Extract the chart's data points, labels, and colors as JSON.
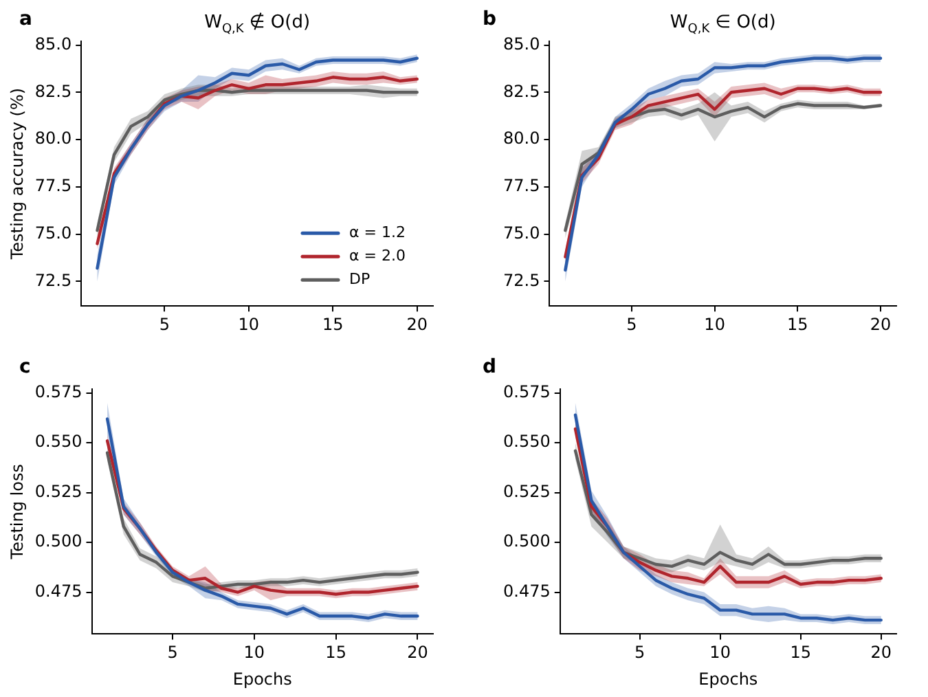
{
  "chart_data": [
    {
      "type": "line",
      "title": "W$_{Q,K}$ ∉ O(d)",
      "ylabel": "Testing accuracy (%)",
      "annotations": [
        "a"
      ],
      "legend": "bottom right",
      "x": [
        1,
        2,
        3,
        4,
        5,
        6,
        7,
        8,
        9,
        10,
        11,
        12,
        13,
        14,
        15,
        16,
        17,
        18,
        19,
        20
      ],
      "xlim": [
        0.05,
        20.95
      ],
      "xticks": [
        5,
        10,
        15,
        20
      ],
      "ylim": [
        71.2,
        85.2
      ],
      "yticks": [
        {
          "value": 72.5,
          "label": "72.5"
        },
        {
          "value": 75,
          "label": "75.0"
        },
        {
          "value": 77.5,
          "label": "77.5"
        },
        {
          "value": 80,
          "label": "80.0"
        },
        {
          "value": 82.5,
          "label": "82.5"
        },
        {
          "value": 85,
          "label": "85.0"
        }
      ],
      "series": [
        {
          "name": "α = 1.2",
          "color": "#2a5aa8",
          "values": [
            73.2,
            78.0,
            79.5,
            80.8,
            81.8,
            82.3,
            82.6,
            83.0,
            83.5,
            83.4,
            83.9,
            84.0,
            83.7,
            84.1,
            84.2,
            84.2,
            84.2,
            84.2,
            84.1,
            84.3
          ],
          "lower": [
            72.5,
            77.6,
            79.2,
            80.5,
            81.5,
            82.0,
            82.0,
            82.7,
            83.2,
            83.1,
            83.6,
            83.7,
            83.5,
            83.9,
            84.0,
            84.0,
            84.0,
            84.0,
            83.9,
            84.1
          ],
          "upper": [
            73.9,
            78.4,
            79.8,
            81.1,
            82.1,
            82.6,
            83.4,
            83.3,
            83.8,
            83.7,
            84.2,
            84.3,
            83.9,
            84.3,
            84.4,
            84.4,
            84.4,
            84.4,
            84.3,
            84.5
          ]
        },
        {
          "name": "α = 2.0",
          "color": "#b0252d",
          "values": [
            74.5,
            78.2,
            79.5,
            80.8,
            81.9,
            82.3,
            82.2,
            82.6,
            82.9,
            82.7,
            82.9,
            82.9,
            83.0,
            83.1,
            83.3,
            83.2,
            83.2,
            83.3,
            83.1,
            83.2
          ],
          "lower": [
            74.2,
            77.9,
            79.2,
            80.5,
            81.6,
            82.0,
            81.6,
            82.3,
            82.6,
            82.4,
            82.4,
            82.6,
            82.7,
            82.8,
            83.0,
            82.9,
            82.9,
            83.0,
            82.9,
            83.0
          ],
          "upper": [
            74.8,
            78.5,
            79.8,
            81.1,
            82.2,
            82.6,
            82.8,
            82.9,
            83.2,
            83.0,
            83.4,
            83.2,
            83.3,
            83.4,
            83.6,
            83.5,
            83.5,
            83.6,
            83.3,
            83.4
          ]
        },
        {
          "name": "DP",
          "color": "#5e5e5e",
          "values": [
            75.2,
            79.2,
            80.7,
            81.2,
            82.1,
            82.4,
            82.6,
            82.6,
            82.5,
            82.6,
            82.6,
            82.6,
            82.6,
            82.6,
            82.6,
            82.6,
            82.6,
            82.5,
            82.5,
            82.5
          ],
          "lower": [
            74.8,
            78.8,
            80.3,
            80.9,
            81.8,
            82.1,
            82.3,
            82.3,
            82.3,
            82.4,
            82.4,
            82.4,
            82.4,
            82.4,
            82.4,
            82.4,
            82.3,
            82.2,
            82.3,
            82.3
          ],
          "upper": [
            75.6,
            79.6,
            81.1,
            81.5,
            82.4,
            82.7,
            82.9,
            82.9,
            82.7,
            82.8,
            82.8,
            82.8,
            82.8,
            82.8,
            82.8,
            82.8,
            82.9,
            82.8,
            82.7,
            82.7
          ]
        }
      ]
    },
    {
      "type": "line",
      "title": "W$_{Q,K}$ ∈ O(d)",
      "annotations": [
        "b"
      ],
      "x": [
        1,
        2,
        3,
        4,
        5,
        6,
        7,
        8,
        9,
        10,
        11,
        12,
        13,
        14,
        15,
        16,
        17,
        18,
        19,
        20
      ],
      "xlim": [
        0.05,
        20.95
      ],
      "xticks": [
        5,
        10,
        15,
        20
      ],
      "ylim": [
        71.2,
        85.2
      ],
      "yticks": [
        {
          "value": 72.5,
          "label": "72.5"
        },
        {
          "value": 75,
          "label": "75.0"
        },
        {
          "value": 77.5,
          "label": "77.5"
        },
        {
          "value": 80,
          "label": "80.0"
        },
        {
          "value": 82.5,
          "label": "82.5"
        },
        {
          "value": 85,
          "label": "85.0"
        }
      ],
      "series": [
        {
          "color": "#2a5aa8",
          "values": [
            73.1,
            78.0,
            79.2,
            80.9,
            81.6,
            82.4,
            82.7,
            83.1,
            83.2,
            83.8,
            83.8,
            83.9,
            83.9,
            84.1,
            84.2,
            84.3,
            84.3,
            84.2,
            84.3,
            84.3
          ],
          "lower": [
            72.5,
            77.5,
            78.9,
            80.6,
            81.3,
            82.1,
            82.3,
            82.8,
            82.9,
            83.5,
            83.6,
            83.7,
            83.7,
            83.9,
            84.0,
            84.1,
            84.1,
            84.0,
            84.1,
            84.1
          ],
          "upper": [
            73.7,
            78.5,
            79.5,
            81.2,
            81.9,
            82.7,
            83.1,
            83.4,
            83.5,
            84.1,
            84.0,
            84.1,
            84.1,
            84.3,
            84.4,
            84.5,
            84.5,
            84.4,
            84.5,
            84.5
          ]
        },
        {
          "color": "#b0252d",
          "values": [
            73.8,
            78.1,
            79.0,
            80.8,
            81.2,
            81.8,
            82.0,
            82.2,
            82.4,
            81.6,
            82.5,
            82.6,
            82.7,
            82.4,
            82.7,
            82.7,
            82.6,
            82.7,
            82.5,
            82.5
          ],
          "lower": [
            73.4,
            77.7,
            78.7,
            80.5,
            80.8,
            81.5,
            81.7,
            81.9,
            82.1,
            81.2,
            82.2,
            82.3,
            82.4,
            82.1,
            82.5,
            82.5,
            82.4,
            82.5,
            82.3,
            82.3
          ],
          "upper": [
            74.2,
            78.5,
            79.3,
            81.1,
            81.6,
            82.1,
            82.3,
            82.5,
            82.7,
            82.0,
            82.8,
            82.9,
            83.0,
            82.7,
            82.9,
            82.9,
            82.8,
            82.9,
            82.7,
            82.7
          ]
        },
        {
          "color": "#5e5e5e",
          "values": [
            75.2,
            78.7,
            79.3,
            80.9,
            81.2,
            81.5,
            81.6,
            81.3,
            81.6,
            81.2,
            81.5,
            81.7,
            81.2,
            81.7,
            81.9,
            81.8,
            81.8,
            81.8,
            81.7,
            81.8
          ],
          "lower": [
            74.8,
            78.0,
            79.0,
            80.6,
            80.9,
            81.2,
            81.3,
            81.0,
            81.3,
            79.9,
            81.2,
            81.4,
            80.9,
            81.5,
            81.7,
            81.6,
            81.6,
            81.6,
            81.6,
            81.7
          ],
          "upper": [
            75.6,
            79.4,
            79.6,
            81.2,
            81.5,
            81.8,
            81.9,
            81.6,
            81.9,
            82.5,
            81.8,
            82.0,
            81.5,
            81.9,
            82.1,
            82.0,
            82.0,
            82.0,
            81.8,
            81.9
          ]
        }
      ]
    },
    {
      "type": "line",
      "xlabel": "Epochs",
      "ylabel": "Testing loss",
      "annotations": [
        "c"
      ],
      "x": [
        1,
        2,
        3,
        4,
        5,
        6,
        7,
        8,
        9,
        10,
        11,
        12,
        13,
        14,
        15,
        16,
        17,
        18,
        19,
        20
      ],
      "xlim": [
        0.05,
        20.95
      ],
      "xticks": [
        5,
        10,
        15,
        20
      ],
      "ylim": [
        0.454,
        0.577
      ],
      "yticks": [
        0.475,
        {
          "value": 0.5,
          "label": "0.500"
        },
        0.525,
        {
          "value": 0.55,
          "label": "0.550"
        },
        0.575
      ],
      "series": [
        {
          "color": "#2a5aa8",
          "values": [
            0.562,
            0.518,
            0.507,
            0.495,
            0.485,
            0.48,
            0.476,
            0.473,
            0.469,
            0.468,
            0.467,
            0.464,
            0.467,
            0.463,
            0.463,
            0.463,
            0.462,
            0.464,
            0.463,
            0.463
          ],
          "lower": [
            0.554,
            0.514,
            0.504,
            0.493,
            0.483,
            0.478,
            0.472,
            0.471,
            0.467,
            0.466,
            0.465,
            0.462,
            0.465,
            0.461,
            0.461,
            0.461,
            0.46,
            0.462,
            0.461,
            0.461
          ],
          "upper": [
            0.57,
            0.522,
            0.51,
            0.497,
            0.487,
            0.482,
            0.48,
            0.475,
            0.471,
            0.47,
            0.469,
            0.466,
            0.469,
            0.465,
            0.465,
            0.465,
            0.464,
            0.466,
            0.465,
            0.465
          ]
        },
        {
          "color": "#b0252d",
          "values": [
            0.551,
            0.517,
            0.507,
            0.496,
            0.486,
            0.481,
            0.482,
            0.477,
            0.475,
            0.478,
            0.476,
            0.475,
            0.475,
            0.475,
            0.474,
            0.475,
            0.475,
            0.476,
            0.477,
            0.478
          ],
          "lower": [
            0.548,
            0.514,
            0.504,
            0.494,
            0.484,
            0.479,
            0.476,
            0.475,
            0.473,
            0.476,
            0.471,
            0.473,
            0.473,
            0.473,
            0.472,
            0.473,
            0.473,
            0.474,
            0.475,
            0.476
          ],
          "upper": [
            0.554,
            0.52,
            0.51,
            0.498,
            0.488,
            0.483,
            0.488,
            0.479,
            0.477,
            0.48,
            0.481,
            0.477,
            0.477,
            0.477,
            0.476,
            0.477,
            0.477,
            0.478,
            0.479,
            0.48
          ]
        },
        {
          "color": "#5e5e5e",
          "values": [
            0.545,
            0.508,
            0.494,
            0.49,
            0.483,
            0.48,
            0.477,
            0.478,
            0.479,
            0.479,
            0.48,
            0.48,
            0.481,
            0.48,
            0.481,
            0.482,
            0.483,
            0.484,
            0.484,
            0.485
          ],
          "lower": [
            0.541,
            0.504,
            0.491,
            0.487,
            0.48,
            0.478,
            0.475,
            0.476,
            0.477,
            0.477,
            0.478,
            0.478,
            0.479,
            0.478,
            0.479,
            0.48,
            0.481,
            0.482,
            0.482,
            0.483
          ],
          "upper": [
            0.549,
            0.512,
            0.497,
            0.493,
            0.486,
            0.482,
            0.479,
            0.48,
            0.481,
            0.481,
            0.482,
            0.482,
            0.483,
            0.482,
            0.483,
            0.484,
            0.485,
            0.486,
            0.486,
            0.487
          ]
        }
      ]
    },
    {
      "type": "line",
      "xlabel": "Epochs",
      "annotations": [
        "d"
      ],
      "x": [
        1,
        2,
        3,
        4,
        5,
        6,
        7,
        8,
        9,
        10,
        11,
        12,
        13,
        14,
        15,
        16,
        17,
        18,
        19,
        20
      ],
      "xlim": [
        0.05,
        20.95
      ],
      "xticks": [
        5,
        10,
        15,
        20
      ],
      "ylim": [
        0.454,
        0.577
      ],
      "yticks": [
        0.475,
        {
          "value": 0.5,
          "label": "0.500"
        },
        0.525,
        {
          "value": 0.55,
          "label": "0.550"
        },
        0.575
      ],
      "series": [
        {
          "color": "#2a5aa8",
          "values": [
            0.564,
            0.521,
            0.508,
            0.495,
            0.488,
            0.481,
            0.477,
            0.474,
            0.472,
            0.466,
            0.466,
            0.464,
            0.464,
            0.464,
            0.462,
            0.462,
            0.461,
            0.462,
            0.461,
            0.461
          ],
          "lower": [
            0.557,
            0.516,
            0.503,
            0.492,
            0.485,
            0.478,
            0.474,
            0.471,
            0.469,
            0.463,
            0.463,
            0.461,
            0.46,
            0.461,
            0.46,
            0.46,
            0.459,
            0.46,
            0.459,
            0.459
          ],
          "upper": [
            0.57,
            0.526,
            0.513,
            0.498,
            0.491,
            0.484,
            0.48,
            0.477,
            0.475,
            0.469,
            0.469,
            0.467,
            0.468,
            0.467,
            0.464,
            0.464,
            0.463,
            0.464,
            0.463,
            0.463
          ]
        },
        {
          "color": "#b0252d",
          "values": [
            0.557,
            0.518,
            0.508,
            0.495,
            0.49,
            0.486,
            0.483,
            0.482,
            0.48,
            0.488,
            0.48,
            0.48,
            0.48,
            0.483,
            0.479,
            0.48,
            0.48,
            0.481,
            0.481,
            0.482
          ],
          "lower": [
            0.553,
            0.514,
            0.504,
            0.492,
            0.486,
            0.483,
            0.48,
            0.479,
            0.478,
            0.484,
            0.477,
            0.477,
            0.477,
            0.48,
            0.477,
            0.478,
            0.478,
            0.479,
            0.479,
            0.48
          ],
          "upper": [
            0.561,
            0.522,
            0.512,
            0.498,
            0.494,
            0.489,
            0.486,
            0.485,
            0.482,
            0.492,
            0.483,
            0.483,
            0.483,
            0.486,
            0.481,
            0.482,
            0.482,
            0.483,
            0.483,
            0.484
          ]
        },
        {
          "color": "#5e5e5e",
          "values": [
            0.546,
            0.514,
            0.505,
            0.495,
            0.492,
            0.489,
            0.488,
            0.491,
            0.489,
            0.495,
            0.491,
            0.489,
            0.494,
            0.489,
            0.489,
            0.49,
            0.491,
            0.491,
            0.492,
            0.492
          ],
          "lower": [
            0.542,
            0.508,
            0.5,
            0.492,
            0.489,
            0.486,
            0.485,
            0.488,
            0.486,
            0.49,
            0.488,
            0.486,
            0.49,
            0.487,
            0.487,
            0.488,
            0.489,
            0.489,
            0.49,
            0.49
          ],
          "upper": [
            0.55,
            0.52,
            0.51,
            0.498,
            0.495,
            0.492,
            0.491,
            0.494,
            0.492,
            0.509,
            0.494,
            0.492,
            0.498,
            0.491,
            0.491,
            0.492,
            0.493,
            0.493,
            0.494,
            0.494
          ]
        }
      ]
    }
  ]
}
